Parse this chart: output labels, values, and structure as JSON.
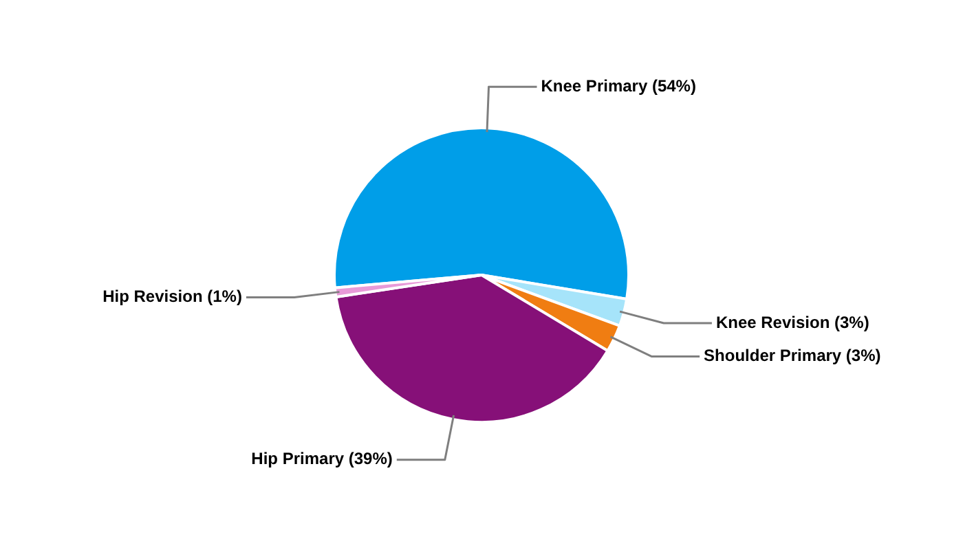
{
  "chart_data": {
    "type": "pie",
    "categories": [
      "Knee Primary",
      "Knee Revision",
      "Shoulder Primary",
      "Hip Primary",
      "Hip Revision"
    ],
    "values": [
      54,
      3,
      3,
      39,
      1
    ],
    "colors": [
      "#009ee8",
      "#a6e4fa",
      "#f07d12",
      "#861078",
      "#e89ad8"
    ],
    "value_labels": [
      "(54%)",
      "(3%)",
      "(3%)",
      "(39%)",
      "(1%)"
    ],
    "legend": false
  }
}
